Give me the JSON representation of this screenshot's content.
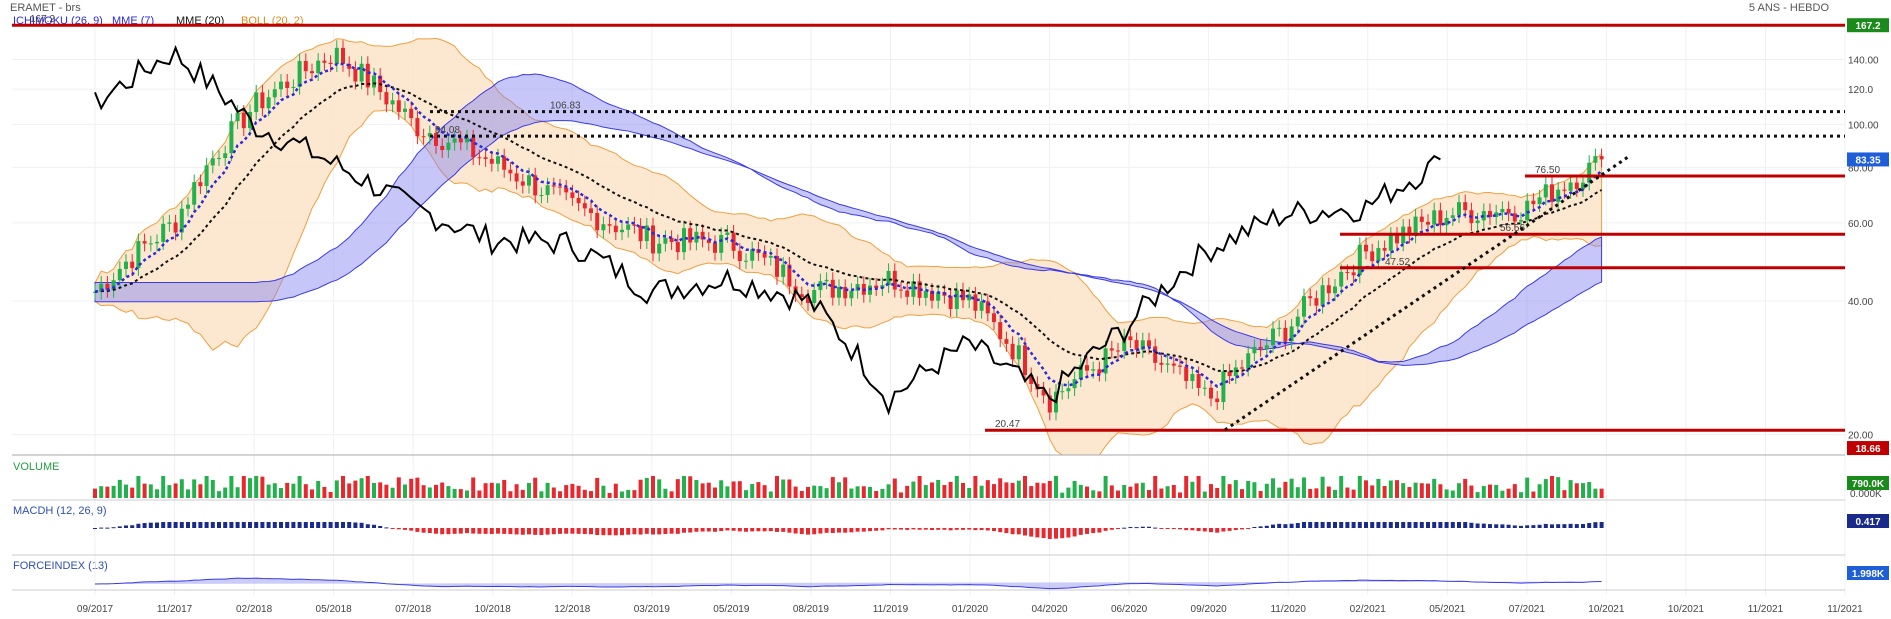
{
  "header": {
    "symbol": "ERAMET - brs",
    "period": "5 ANS - HEBDO"
  },
  "legend": {
    "ichimoku": "ICHIMOKU (26, 9)",
    "mme7": "MME (7)",
    "mme20": "MME (20)",
    "boll": "BOLL (20, 2)"
  },
  "colors": {
    "up": "#22b14c",
    "down": "#e8282f",
    "resistance": "#c00000",
    "ichimoku_blue": "#3a3ae8",
    "cloud": "#8080f0",
    "boll_fill": "#fbe3c8",
    "boll_line": "#f0a040",
    "mme7": "#2a2ad8",
    "mme20": "#111111",
    "close_line": "#000000",
    "badge_green": "#1a8a1a",
    "badge_blue": "#1f5ed9",
    "badge_red": "#c00000",
    "badge_navy": "#1a2a8a"
  },
  "panels": {
    "volume": "VOLUME",
    "macdh": "MACDH (12, 26, 9)",
    "force": "FORCEINDEX (13)"
  },
  "badges": {
    "high": "167.2",
    "last": "83.35",
    "low": "18.66",
    "volume": "790.0K",
    "volume_zero": "0.000K",
    "macd": "0.417",
    "force": "1.998K"
  },
  "chart_data": {
    "type": "candlestick",
    "y_scale": "log",
    "ylim": [
      18,
      170
    ],
    "y_ticks": [
      "140.00",
      "120.0",
      "100.00",
      "80.00",
      "60.00",
      "40.00",
      "20.00"
    ],
    "x_ticks": [
      "09/2017",
      "11/2017",
      "02/2018",
      "05/2018",
      "07/2018",
      "10/2018",
      "12/2018",
      "03/2019",
      "05/2019",
      "08/2019",
      "11/2019",
      "01/2020",
      "04/2020",
      "06/2020",
      "09/2020",
      "11/2020",
      "02/2021",
      "05/2021",
      "07/2021",
      "10/2021",
      "10/2021",
      "11/2021",
      "11/2021"
    ],
    "levels": [
      {
        "value": 167.2,
        "label": "167.2",
        "style": "solid-red"
      },
      {
        "value": 106.83,
        "label": "106.83",
        "style": "dotted"
      },
      {
        "value": 94.08,
        "label": "94.08",
        "style": "dotted"
      },
      {
        "value": 76.5,
        "label": "76.50",
        "style": "solid-red"
      },
      {
        "value": 56.56,
        "label": "56.56",
        "style": "solid-red"
      },
      {
        "value": 47.52,
        "label": "47.52",
        "style": "solid-red"
      },
      {
        "value": 20.47,
        "label": "20.47",
        "style": "solid-red"
      }
    ],
    "last_close": 83.35,
    "period_low": 18.66,
    "key_closes": [
      [
        "09/2017",
        42
      ],
      [
        "11/2017",
        60
      ],
      [
        "02/2018",
        110
      ],
      [
        "05/2018",
        145
      ],
      [
        "07/2018",
        100
      ],
      [
        "10/2018",
        82
      ],
      [
        "12/2018",
        65
      ],
      [
        "03/2019",
        55
      ],
      [
        "05/2019",
        54
      ],
      [
        "08/2019",
        42
      ],
      [
        "11/2019",
        45
      ],
      [
        "01/2020",
        40
      ],
      [
        "04/2020",
        24
      ],
      [
        "06/2020",
        32
      ],
      [
        "09/2020",
        24
      ],
      [
        "11/2020",
        35
      ],
      [
        "02/2021",
        52
      ],
      [
        "05/2021",
        63
      ],
      [
        "07/2021",
        65
      ],
      [
        "10/2021",
        83.35
      ]
    ]
  }
}
